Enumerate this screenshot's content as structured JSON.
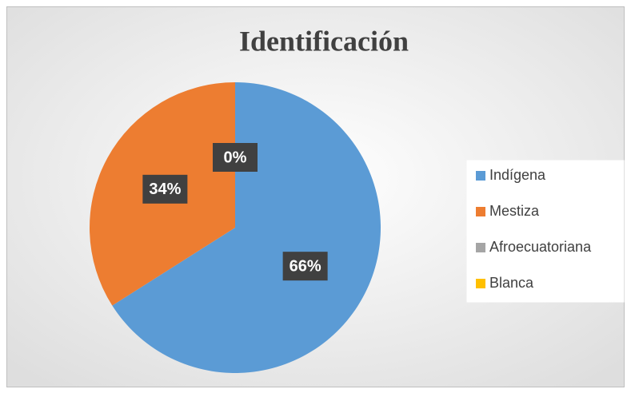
{
  "chart_data": {
    "type": "pie",
    "title": "Identificación",
    "categories": [
      "Indígena",
      "Mestiza",
      "Afroecuatoriana",
      "Blanca"
    ],
    "values": [
      66,
      34,
      0,
      0
    ],
    "value_labels": [
      "66%",
      "34%",
      "0%",
      "0%"
    ],
    "colors": [
      "#5b9bd5",
      "#ed7d31",
      "#a5a5a5",
      "#ffc000"
    ],
    "legend": "right"
  }
}
